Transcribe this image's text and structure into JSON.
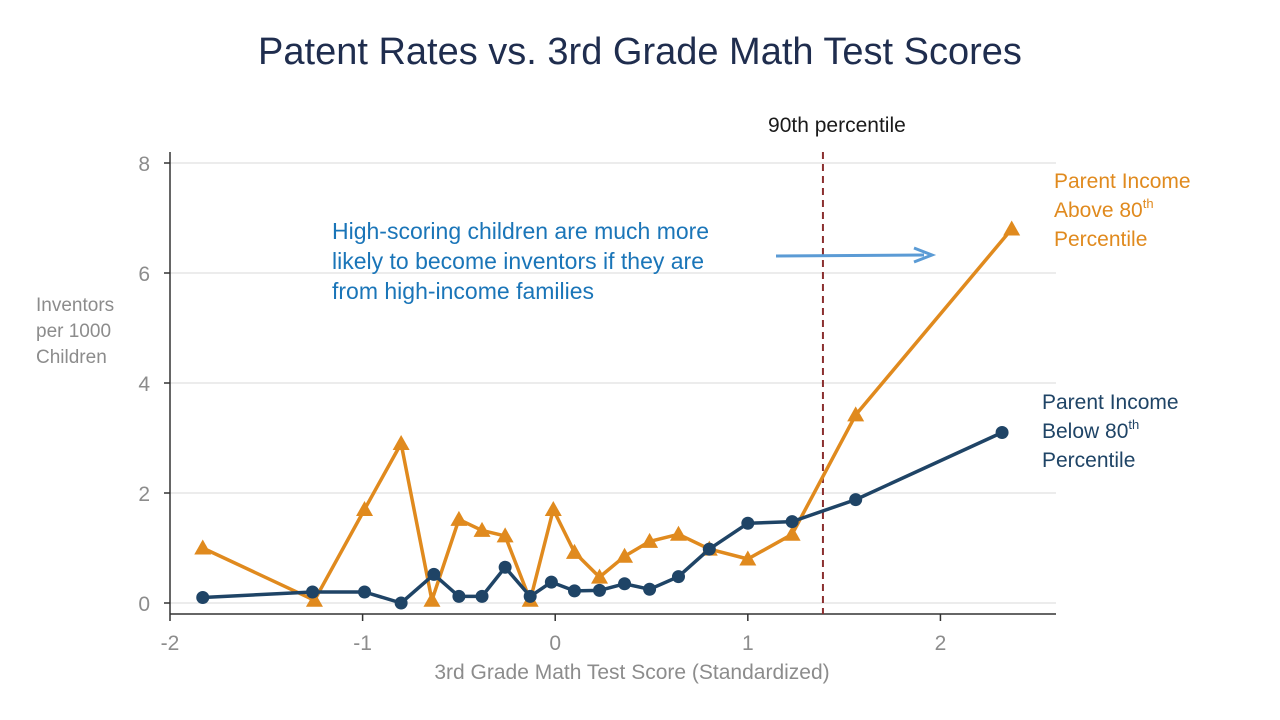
{
  "chart_data": {
    "type": "line",
    "title": "Patent Rates vs. 3rd Grade Math Test Scores",
    "xlabel": "3rd Grade Math Test Score (Standardized)",
    "ylabel_lines": [
      "Inventors",
      "per 1000",
      "Children"
    ],
    "xlim": [
      -2.0,
      2.6
    ],
    "ylim": [
      -0.2,
      8.2
    ],
    "x_ticks": [
      -2,
      -1,
      0,
      1,
      2
    ],
    "x_tick_labels": [
      "-2",
      "-1",
      "0",
      "1",
      "2"
    ],
    "y_ticks": [
      0,
      2,
      4,
      6,
      8
    ],
    "y_tick_labels": [
      "0",
      "2",
      "4",
      "6",
      "8"
    ],
    "grid": "horizontal",
    "series": [
      {
        "name_lines": [
          "Parent Income",
          "Above 80",
          "Percentile"
        ],
        "name_superscript": "th",
        "color": "#E08A1E",
        "marker": "triangle",
        "x": [
          -1.83,
          -1.25,
          -0.99,
          -0.8,
          -0.64,
          -0.5,
          -0.38,
          -0.26,
          -0.13,
          -0.01,
          0.1,
          0.23,
          0.36,
          0.49,
          0.64,
          0.8,
          1.0,
          1.23,
          1.56,
          2.37
        ],
        "y": [
          1.0,
          0.05,
          1.7,
          2.9,
          0.05,
          1.52,
          1.32,
          1.22,
          0.05,
          1.7,
          0.92,
          0.47,
          0.85,
          1.12,
          1.25,
          0.98,
          0.8,
          1.25,
          3.42,
          6.8
        ]
      },
      {
        "name_lines": [
          "Parent Income",
          "Below 80",
          "Percentile"
        ],
        "name_superscript": "th",
        "color": "#1F4466",
        "marker": "circle",
        "x": [
          -1.83,
          -1.26,
          -0.99,
          -0.8,
          -0.63,
          -0.5,
          -0.38,
          -0.26,
          -0.13,
          -0.02,
          0.1,
          0.23,
          0.36,
          0.49,
          0.64,
          0.8,
          1.0,
          1.23,
          1.56,
          2.32
        ],
        "y": [
          0.1,
          0.2,
          0.2,
          0.0,
          0.52,
          0.12,
          0.12,
          0.65,
          0.12,
          0.38,
          0.22,
          0.23,
          0.35,
          0.25,
          0.48,
          0.98,
          1.45,
          1.48,
          1.88,
          3.1
        ]
      }
    ],
    "vline": {
      "x": 1.39,
      "label": "90th percentile",
      "color": "#8B2F2F"
    },
    "annotation": {
      "lines": [
        "High-scoring children are much more",
        "likely to become inventors if they are",
        "from high-income families"
      ],
      "color": "#1A75B8",
      "arrow_color": "#5B9BD5"
    }
  }
}
